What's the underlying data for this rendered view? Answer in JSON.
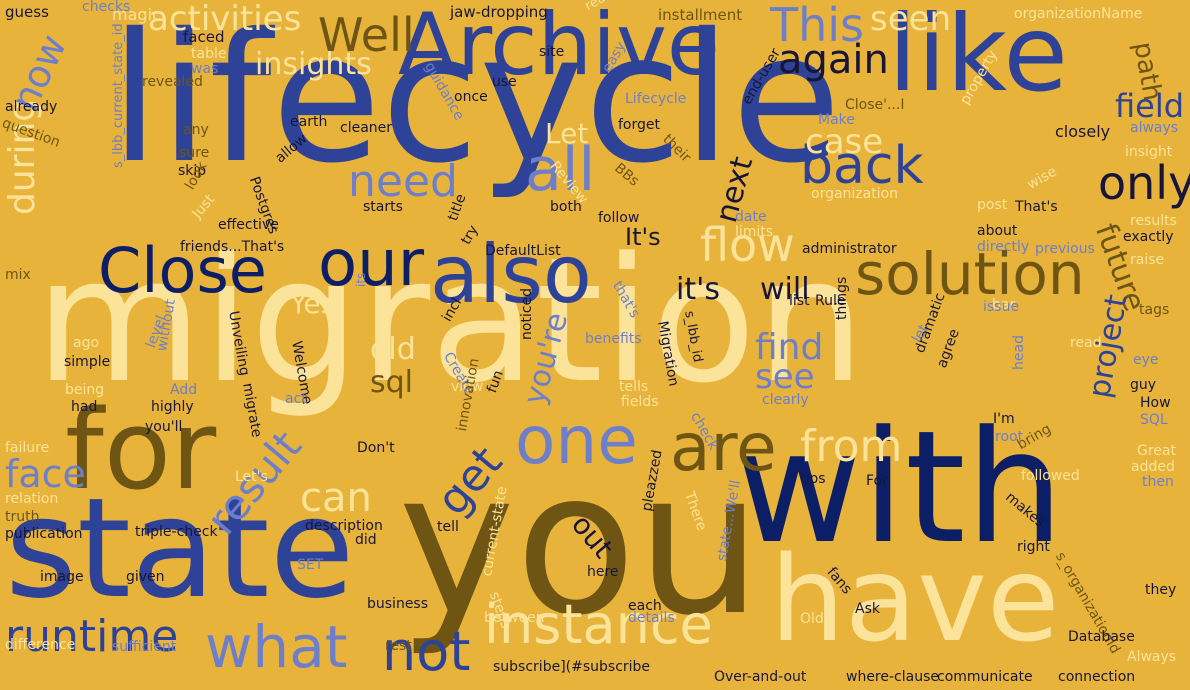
{
  "palette": {
    "background": "#e8b33a",
    "royal": "#2e4397",
    "navy": "#0c1f66",
    "cream": "#fbe39a",
    "olive": "#6e5514",
    "periwinkle": "#6d7fcb",
    "dark": "#17163a"
  },
  "words": [
    {
      "text": "lifecycle",
      "color": "royal"
    },
    {
      "text": "migration",
      "color": "cream"
    },
    {
      "text": "you",
      "color": "olive"
    },
    {
      "text": "with",
      "color": "navy"
    },
    {
      "text": "state",
      "color": "royal"
    },
    {
      "text": "have",
      "color": "cream"
    },
    {
      "text": "for",
      "color": "olive"
    },
    {
      "text": "Archive",
      "color": "royal"
    },
    {
      "text": "like",
      "color": "royal"
    },
    {
      "text": "our",
      "color": "navy"
    },
    {
      "text": "also",
      "color": "royal"
    },
    {
      "text": "Close",
      "color": "navy"
    },
    {
      "text": "solution",
      "color": "olive"
    },
    {
      "text": "one",
      "color": "periwinkle"
    },
    {
      "text": "are",
      "color": "olive"
    },
    {
      "text": "instance",
      "color": "cream"
    },
    {
      "text": "what",
      "color": "periwinkle"
    },
    {
      "text": "runtime",
      "color": "royal"
    },
    {
      "text": "not",
      "color": "royal"
    },
    {
      "text": "from",
      "color": "cream"
    },
    {
      "text": "all",
      "color": "periwinkle"
    },
    {
      "text": "back",
      "color": "royal"
    },
    {
      "text": "only",
      "color": "dark"
    },
    {
      "text": "flow",
      "color": "cream"
    },
    {
      "text": "Well",
      "color": "olive"
    },
    {
      "text": "This",
      "color": "periwinkle"
    },
    {
      "text": "again",
      "color": "dark"
    },
    {
      "text": "seen",
      "color": "cream"
    },
    {
      "text": "need",
      "color": "periwinkle"
    },
    {
      "text": "result",
      "color": "periwinkle"
    },
    {
      "text": "get",
      "color": "royal"
    },
    {
      "text": "can",
      "color": "cream"
    },
    {
      "text": "face",
      "color": "periwinkle"
    },
    {
      "text": "during",
      "color": "cream"
    },
    {
      "text": "now",
      "color": "periwinkle"
    },
    {
      "text": "activities",
      "color": "cream"
    },
    {
      "text": "insights",
      "color": "cream"
    },
    {
      "text": "field",
      "color": "royal"
    },
    {
      "text": "path",
      "color": "olive"
    },
    {
      "text": "case",
      "color": "cream"
    },
    {
      "text": "Let",
      "color": "cream"
    },
    {
      "text": "next",
      "color": "dark"
    },
    {
      "text": "It's",
      "color": "dark"
    },
    {
      "text": "future",
      "color": "olive"
    },
    {
      "text": "project",
      "color": "royal"
    },
    {
      "text": "find",
      "color": "periwinkle"
    },
    {
      "text": "see",
      "color": "periwinkle"
    },
    {
      "text": "it's",
      "color": "dark"
    },
    {
      "text": "will",
      "color": "dark"
    },
    {
      "text": "old",
      "color": "cream"
    },
    {
      "text": "sql",
      "color": "olive"
    },
    {
      "text": "Yes",
      "color": "cream"
    },
    {
      "text": "you're",
      "color": "periwinkle"
    },
    {
      "text": "out",
      "color": "dark"
    },
    {
      "text": "guess",
      "color": "dark"
    },
    {
      "text": "checks",
      "color": "periwinkle"
    },
    {
      "text": "magic",
      "color": "cream"
    },
    {
      "text": "jaw-dropping",
      "color": "dark"
    },
    {
      "text": "really",
      "color": "cream"
    },
    {
      "text": "installment",
      "color": "olive"
    },
    {
      "text": "organizationName",
      "color": "cream"
    },
    {
      "text": "faced",
      "color": "dark"
    },
    {
      "text": "table",
      "color": "cream"
    },
    {
      "text": "was",
      "color": "periwinkle"
    },
    {
      "text": "revealed",
      "color": "olive"
    },
    {
      "text": "s_lbb_current_state_id",
      "color": "periwinkle"
    },
    {
      "text": "site",
      "color": "dark"
    },
    {
      "text": "easy",
      "color": "periwinkle"
    },
    {
      "text": "use",
      "color": "dark"
    },
    {
      "text": "Close'...I",
      "color": "olive"
    },
    {
      "text": "once",
      "color": "dark"
    },
    {
      "text": "guidance",
      "color": "periwinkle"
    },
    {
      "text": "Lifecycle",
      "color": "periwinkle"
    },
    {
      "text": "already",
      "color": "dark"
    },
    {
      "text": "question",
      "color": "olive"
    },
    {
      "text": "any",
      "color": "olive"
    },
    {
      "text": "earth",
      "color": "dark"
    },
    {
      "text": "cleaner",
      "color": "dark"
    },
    {
      "text": "forget",
      "color": "dark"
    },
    {
      "text": "their",
      "color": "olive"
    },
    {
      "text": "end-user",
      "color": "dark"
    },
    {
      "text": "Make",
      "color": "periwinkle"
    },
    {
      "text": "property",
      "color": "cream"
    },
    {
      "text": "closely",
      "color": "dark"
    },
    {
      "text": "always",
      "color": "periwinkle"
    },
    {
      "text": "insight",
      "color": "cream"
    },
    {
      "text": "sure",
      "color": "olive"
    },
    {
      "text": "allow",
      "color": "dark"
    },
    {
      "text": "skip",
      "color": "dark"
    },
    {
      "text": "look",
      "color": "olive"
    },
    {
      "text": "Postgres",
      "color": "dark"
    },
    {
      "text": "Review",
      "color": "cream"
    },
    {
      "text": "BBs",
      "color": "olive"
    },
    {
      "text": "starts",
      "color": "dark"
    },
    {
      "text": "both",
      "color": "dark"
    },
    {
      "text": "organization",
      "color": "cream"
    },
    {
      "text": "wise",
      "color": "cream"
    },
    {
      "text": "post",
      "color": "cream"
    },
    {
      "text": "That's",
      "color": "dark"
    },
    {
      "text": "results",
      "color": "cream"
    },
    {
      "text": "Just",
      "color": "cream"
    },
    {
      "text": "effective",
      "color": "dark"
    },
    {
      "text": "title",
      "color": "dark"
    },
    {
      "text": "follow",
      "color": "dark"
    },
    {
      "text": "date",
      "color": "periwinkle"
    },
    {
      "text": "limits",
      "color": "cream"
    },
    {
      "text": "about",
      "color": "dark"
    },
    {
      "text": "directly",
      "color": "periwinkle"
    },
    {
      "text": "exactly",
      "color": "dark"
    },
    {
      "text": "friends...That's",
      "color": "dark"
    },
    {
      "text": "try",
      "color": "dark"
    },
    {
      "text": "DefaultList",
      "color": "dark"
    },
    {
      "text": "administrator",
      "color": "dark"
    },
    {
      "text": "previous",
      "color": "periwinkle"
    },
    {
      "text": "raise",
      "color": "cream"
    },
    {
      "text": "mix",
      "color": "olive"
    },
    {
      "text": "its",
      "color": "periwinkle"
    },
    {
      "text": "that's",
      "color": "periwinkle"
    },
    {
      "text": "list",
      "color": "dark"
    },
    {
      "text": "Rule",
      "color": "dark"
    },
    {
      "text": "bar",
      "color": "cream"
    },
    {
      "text": "issue",
      "color": "periwinkle"
    },
    {
      "text": "tags",
      "color": "olive"
    },
    {
      "text": "incl",
      "color": "dark"
    },
    {
      "text": "Create",
      "color": "periwinkle"
    },
    {
      "text": "s_lbb_id",
      "color": "dark"
    },
    {
      "text": "Unveiling",
      "color": "dark"
    },
    {
      "text": "Welcome",
      "color": "dark"
    },
    {
      "text": "view",
      "color": "cream"
    },
    {
      "text": "benefits",
      "color": "periwinkle"
    },
    {
      "text": "Migration",
      "color": "dark"
    },
    {
      "text": "things",
      "color": "dark"
    },
    {
      "text": "let",
      "color": "periwinkle"
    },
    {
      "text": "read",
      "color": "cream"
    },
    {
      "text": "eye",
      "color": "periwinkle"
    },
    {
      "text": "ago",
      "color": "cream"
    },
    {
      "text": "simple",
      "color": "dark"
    },
    {
      "text": "level",
      "color": "periwinkle"
    },
    {
      "text": "without",
      "color": "periwinkle"
    },
    {
      "text": "noticed",
      "color": "dark"
    },
    {
      "text": "dramatic",
      "color": "dark"
    },
    {
      "text": "agree",
      "color": "dark"
    },
    {
      "text": "head",
      "color": "periwinkle"
    },
    {
      "text": "guy",
      "color": "dark"
    },
    {
      "text": "How",
      "color": "dark"
    },
    {
      "text": "SQL",
      "color": "periwinkle"
    },
    {
      "text": "being",
      "color": "cream"
    },
    {
      "text": "had",
      "color": "dark"
    },
    {
      "text": "Add",
      "color": "periwinkle"
    },
    {
      "text": "highly",
      "color": "dark"
    },
    {
      "text": "migrate",
      "color": "dark"
    },
    {
      "text": "act",
      "color": "periwinkle"
    },
    {
      "text": "fun",
      "color": "dark"
    },
    {
      "text": "tells",
      "color": "cream"
    },
    {
      "text": "fields",
      "color": "cream"
    },
    {
      "text": "clearly",
      "color": "periwinkle"
    },
    {
      "text": "I'm",
      "color": "dark"
    },
    {
      "text": "root",
      "color": "periwinkle"
    },
    {
      "text": "you'll",
      "color": "dark"
    },
    {
      "text": "innovation",
      "color": "olive"
    },
    {
      "text": "check",
      "color": "periwinkle"
    },
    {
      "text": "failure",
      "color": "cream"
    },
    {
      "text": "Don't",
      "color": "dark"
    },
    {
      "text": "bring",
      "color": "olive"
    },
    {
      "text": "Great",
      "color": "cream"
    },
    {
      "text": "added",
      "color": "cream"
    },
    {
      "text": "then",
      "color": "periwinkle"
    },
    {
      "text": "Let's",
      "color": "cream"
    },
    {
      "text": "tips",
      "color": "dark"
    },
    {
      "text": "For",
      "color": "dark"
    },
    {
      "text": "followed",
      "color": "cream"
    },
    {
      "text": "relation",
      "color": "cream"
    },
    {
      "text": "truth",
      "color": "olive"
    },
    {
      "text": "publication",
      "color": "dark"
    },
    {
      "text": "triple-check",
      "color": "dark"
    },
    {
      "text": "description",
      "color": "dark"
    },
    {
      "text": "tell",
      "color": "dark"
    },
    {
      "text": "current-state",
      "color": "cream"
    },
    {
      "text": "pleazzed",
      "color": "dark"
    },
    {
      "text": "There",
      "color": "cream"
    },
    {
      "text": "state...We'll",
      "color": "periwinkle"
    },
    {
      "text": "makes",
      "color": "dark"
    },
    {
      "text": "right",
      "color": "dark"
    },
    {
      "text": "s_organizationId",
      "color": "olive"
    },
    {
      "text": "did",
      "color": "dark"
    },
    {
      "text": "SET",
      "color": "periwinkle"
    },
    {
      "text": "steps",
      "color": "cream"
    },
    {
      "text": "fans",
      "color": "dark"
    },
    {
      "text": "image",
      "color": "dark"
    },
    {
      "text": "given",
      "color": "dark"
    },
    {
      "text": "here",
      "color": "dark"
    },
    {
      "text": "business",
      "color": "dark"
    },
    {
      "text": "each",
      "color": "dark"
    },
    {
      "text": "Old",
      "color": "cream"
    },
    {
      "text": "Ask",
      "color": "dark"
    },
    {
      "text": "they",
      "color": "dark"
    },
    {
      "text": "difference",
      "color": "cream"
    },
    {
      "text": "sufficient",
      "color": "periwinkle"
    },
    {
      "text": "rest",
      "color": "olive"
    },
    {
      "text": "between",
      "color": "cream"
    },
    {
      "text": "details",
      "color": "periwinkle"
    },
    {
      "text": "Database",
      "color": "dark"
    },
    {
      "text": "Always",
      "color": "cream"
    },
    {
      "text": "subscribe](#subscribe",
      "color": "dark"
    },
    {
      "text": "Over-and-out",
      "color": "dark"
    },
    {
      "text": "where-clause",
      "color": "dark"
    },
    {
      "text": "communicate",
      "color": "dark"
    },
    {
      "text": "connection",
      "color": "dark"
    }
  ]
}
